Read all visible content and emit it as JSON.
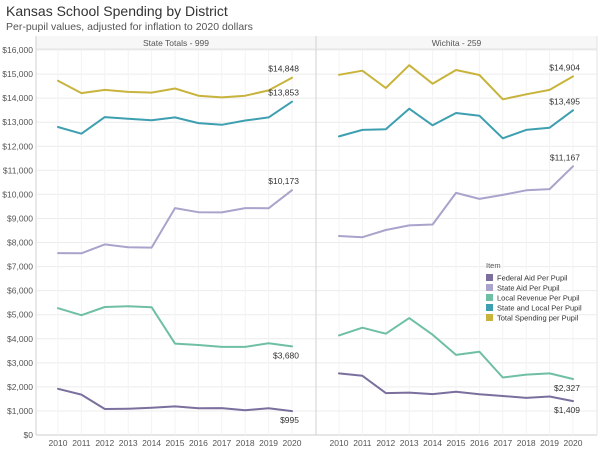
{
  "title": "Kansas School Spending by District",
  "subtitle": "Per-pupil values, adjusted for inflation to 2020 dollars",
  "chart_data": {
    "type": "line",
    "x": [
      2010,
      2011,
      2012,
      2013,
      2014,
      2015,
      2016,
      2017,
      2018,
      2019,
      2020
    ],
    "ylim": [
      0,
      16000
    ],
    "yticks": [
      {
        "value": 0,
        "label": "$0"
      },
      {
        "value": 1000,
        "label": "$1,000"
      },
      {
        "value": 2000,
        "label": "$2,000"
      },
      {
        "value": 3000,
        "label": "$3,000"
      },
      {
        "value": 4000,
        "label": "$4,000"
      },
      {
        "value": 5000,
        "label": "$5,000"
      },
      {
        "value": 6000,
        "label": "$6,000"
      },
      {
        "value": 7000,
        "label": "$7,000"
      },
      {
        "value": 8000,
        "label": "$8,000"
      },
      {
        "value": 9000,
        "label": "$9,000"
      },
      {
        "value": 10000,
        "label": "$10,000"
      },
      {
        "value": 11000,
        "label": "$11,000"
      },
      {
        "value": 12000,
        "label": "$12,000"
      },
      {
        "value": 13000,
        "label": "$13,000"
      },
      {
        "value": 14000,
        "label": "$14,000"
      },
      {
        "value": 15000,
        "label": "$15,000"
      },
      {
        "value": 16000,
        "label": "$16,000"
      }
    ],
    "grid": true,
    "legend": {
      "title": "Item",
      "position": "right",
      "entries": [
        {
          "name": "Federal Aid Per Pupil",
          "color": "#7b6f9e"
        },
        {
          "name": "State Aid Per Pupil",
          "color": "#aaa3cb"
        },
        {
          "name": "Local Revenue Per Pupil",
          "color": "#6fbfa5"
        },
        {
          "name": "State and Local Per Pupil",
          "color": "#3d9fb0"
        },
        {
          "name": "Total Spending per Pupil",
          "color": "#c8b43c"
        }
      ]
    },
    "panels": [
      {
        "title": "State Totals - 999",
        "series": [
          {
            "name": "Federal Aid Per Pupil",
            "color": "#7b6f9e",
            "values": [
              1920,
              1680,
              1080,
              1090,
              1130,
              1190,
              1110,
              1120,
              1030,
              1110,
              995
            ],
            "end_label": "$995"
          },
          {
            "name": "State Aid Per Pupil",
            "color": "#aaa3cb",
            "values": [
              7560,
              7550,
              7920,
              7800,
              7790,
              9430,
              9260,
              9250,
              9430,
              9420,
              10173
            ],
            "end_label": "$10,173"
          },
          {
            "name": "Local Revenue Per Pupil",
            "color": "#6fbfa5",
            "values": [
              5270,
              4980,
              5320,
              5350,
              5310,
              3800,
              3740,
              3660,
              3660,
              3810,
              3680
            ],
            "end_label": "$3,680"
          },
          {
            "name": "State and Local Per Pupil",
            "color": "#3d9fb0",
            "values": [
              12800,
              12520,
              13210,
              13140,
              13080,
              13200,
              12960,
              12890,
              13070,
              13200,
              13853
            ],
            "end_label": "$13,853"
          },
          {
            "name": "Total Spending per Pupil",
            "color": "#c8b43c",
            "values": [
              14720,
              14210,
              14340,
              14260,
              14230,
              14400,
              14100,
              14030,
              14100,
              14320,
              14848
            ],
            "end_label": "$14,848"
          }
        ]
      },
      {
        "title": "Wichita - 259",
        "series": [
          {
            "name": "Federal Aid Per Pupil",
            "color": "#7b6f9e",
            "values": [
              2560,
              2460,
              1740,
              1760,
              1700,
              1800,
              1690,
              1620,
              1540,
              1600,
              1409
            ],
            "end_label": "$1,409"
          },
          {
            "name": "State Aid Per Pupil",
            "color": "#aaa3cb",
            "values": [
              8270,
              8220,
              8520,
              8710,
              8750,
              10060,
              9810,
              9980,
              10170,
              10220,
              11167
            ],
            "end_label": "$11,167"
          },
          {
            "name": "Local Revenue Per Pupil",
            "color": "#6fbfa5",
            "values": [
              4140,
              4460,
              4210,
              4860,
              4170,
              3330,
              3460,
              2390,
              2510,
              2560,
              2327
            ],
            "end_label": "$2,327"
          },
          {
            "name": "State and Local Per Pupil",
            "color": "#3d9fb0",
            "values": [
              12410,
              12680,
              12710,
              13560,
              12870,
              13380,
              13270,
              12330,
              12680,
              12770,
              13495
            ],
            "end_label": "$13,495"
          },
          {
            "name": "Total Spending per Pupil",
            "color": "#c8b43c",
            "values": [
              14970,
              15140,
              14420,
              15370,
              14600,
              15170,
              14960,
              13950,
              14160,
              14340,
              14904
            ],
            "end_label": "$14,904"
          }
        ]
      }
    ]
  }
}
